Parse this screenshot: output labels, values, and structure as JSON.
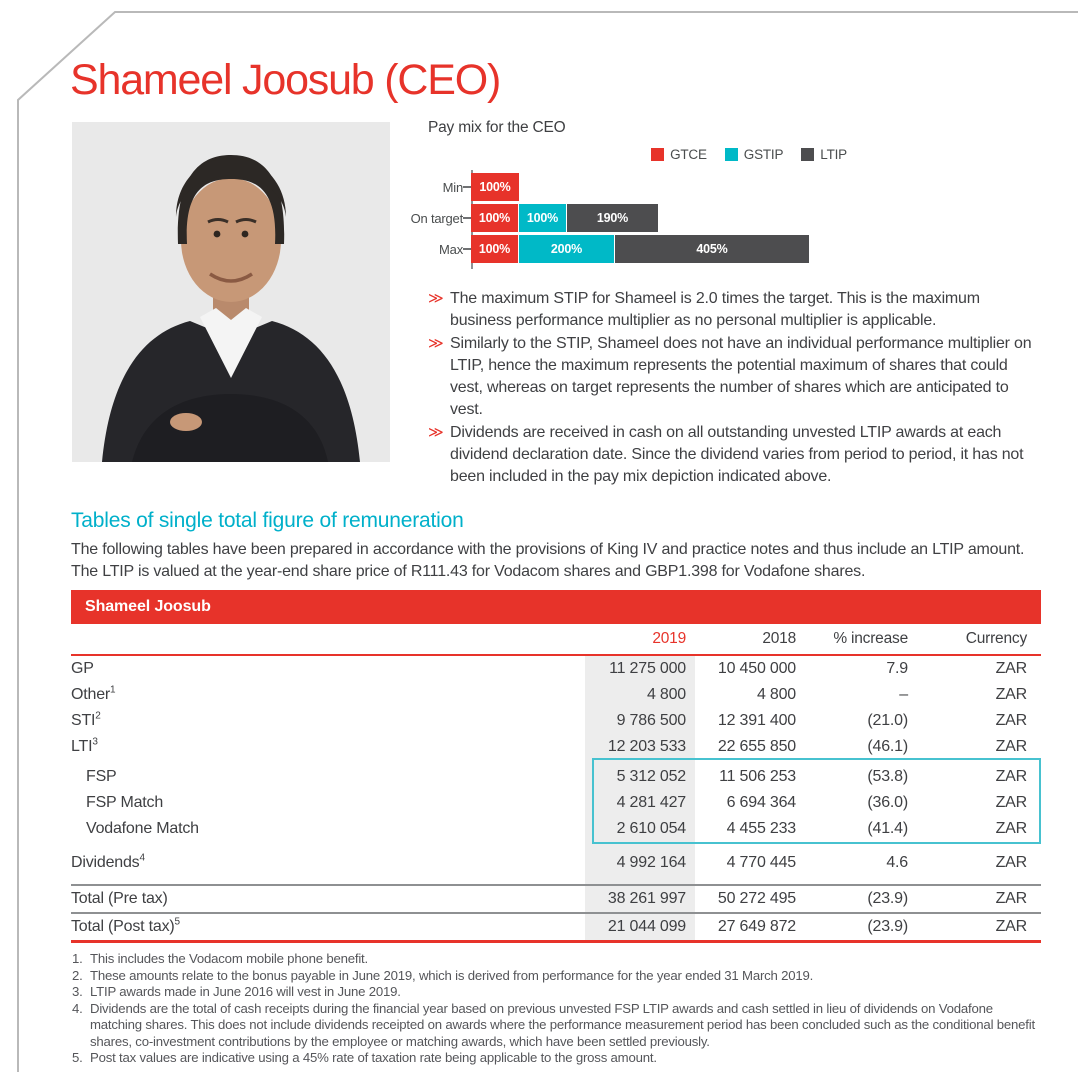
{
  "colors": {
    "red": "#e7332a",
    "teal_heading": "#00b0ca",
    "gstip_cyan": "#00b9c7",
    "ltip_gray": "#4d4d4f",
    "cyan_box_border": "#47c2d0",
    "column_band_gray": "#ededed"
  },
  "page_title": "Shameel Joosub (CEO)",
  "bullet_marker": "≫",
  "chart_data": {
    "type": "bar",
    "orientation": "horizontal",
    "stacked": true,
    "title": "Pay mix for the CEO",
    "categories": [
      "Min",
      "On target",
      "Max"
    ],
    "series": [
      {
        "name": "GTCE",
        "color": "#e7332a",
        "values": [
          100,
          100,
          100
        ]
      },
      {
        "name": "GSTIP",
        "color": "#00b9c7",
        "values": [
          0,
          100,
          200
        ]
      },
      {
        "name": "LTIP",
        "color": "#4d4d4f",
        "values": [
          0,
          190,
          405
        ]
      }
    ],
    "value_unit": "%",
    "bar_labels": [
      [
        "100%"
      ],
      [
        "100%",
        "100%",
        "190%"
      ],
      [
        "100%",
        "200%",
        "405%"
      ]
    ],
    "legend_position": "top-right",
    "xlim_percent": [
      0,
      705
    ]
  },
  "bullets": [
    "The maximum STIP for Shameel is 2.0 times the target. This is the maximum business performance multiplier as no personal multiplier is applicable.",
    "Similarly to the STIP, Shameel does not have an individual performance multiplier on LTIP, hence the maximum represents the potential maximum of shares that could vest, whereas on target represents the number of shares which are anticipated to vest.",
    "Dividends are received in cash on all outstanding unvested LTIP awards at each dividend declaration date. Since the dividend varies from period to period, it has not been included in the pay mix depiction indicated above."
  ],
  "section": {
    "heading": "Tables of single total figure of remuneration",
    "paragraph_lines": [
      "The following tables have been prepared in accordance with the provisions of King IV and practice notes and thus include an LTIP amount.",
      "The LTIP is valued at the year-end share price of R111.43 for Vodacom shares and GBP1.398 for Vodafone shares."
    ]
  },
  "table": {
    "title": "Shameel Joosub",
    "columns": [
      "2019",
      "2018",
      "% increase",
      "Currency"
    ],
    "rows": [
      {
        "label": "GP",
        "sup": "",
        "v2019": "11 275 000",
        "v2018": "10 450 000",
        "pct": "7.9",
        "cur": "ZAR"
      },
      {
        "label": "Other",
        "sup": "1",
        "v2019": "4 800",
        "v2018": "4 800",
        "pct": "–",
        "cur": "ZAR"
      },
      {
        "label": "STI",
        "sup": "2",
        "v2019": "9 786 500",
        "v2018": "12 391 400",
        "pct": "(21.0)",
        "cur": "ZAR"
      },
      {
        "label": "LTI",
        "sup": "3",
        "v2019": "12 203 533",
        "v2018": "22 655 850",
        "pct": "(46.1)",
        "cur": "ZAR"
      },
      {
        "label": "FSP",
        "sup": "",
        "v2019": "5 312 052",
        "v2018": "11 506 253",
        "pct": "(53.8)",
        "cur": "ZAR"
      },
      {
        "label": "FSP Match",
        "sup": "",
        "v2019": "4 281 427",
        "v2018": "6 694 364",
        "pct": "(36.0)",
        "cur": "ZAR"
      },
      {
        "label": "Vodafone Match",
        "sup": "",
        "v2019": "2 610 054",
        "v2018": "4 455 233",
        "pct": "(41.4)",
        "cur": "ZAR"
      },
      {
        "label": "Dividends",
        "sup": "4",
        "v2019": "4 992 164",
        "v2018": "4 770 445",
        "pct": "4.6",
        "cur": "ZAR"
      },
      {
        "label": "Total (Pre tax)",
        "sup": "",
        "v2019": "38 261 997",
        "v2018": "50 272 495",
        "pct": "(23.9)",
        "cur": "ZAR"
      },
      {
        "label": "Total (Post tax)",
        "sup": "5",
        "v2019": "21 044 099",
        "v2018": "27 649 872",
        "pct": "(23.9)",
        "cur": "ZAR"
      }
    ]
  },
  "footnotes": [
    {
      "num": "1.",
      "text": "This includes the Vodacom mobile phone benefit."
    },
    {
      "num": "2.",
      "text": "These amounts relate to the bonus payable in June 2019, which is derived from performance for the year ended 31 March 2019."
    },
    {
      "num": "3.",
      "text": "LTIP awards made in June 2016 will vest in June 2019."
    },
    {
      "num": "4.",
      "text": "Dividends are the total of cash receipts during the financial year based on previous unvested FSP LTIP awards and cash settled in lieu of dividends on Vodafone matching shares. This does not include dividends receipted on awards where the performance measurement period has been concluded such as the conditional benefit shares, co-investment contributions by the employee or matching awards, which have been settled previously."
    },
    {
      "num": "5.",
      "text": "Post tax values are indicative using a 45% rate of taxation rate being applicable to the gross amount."
    }
  ]
}
